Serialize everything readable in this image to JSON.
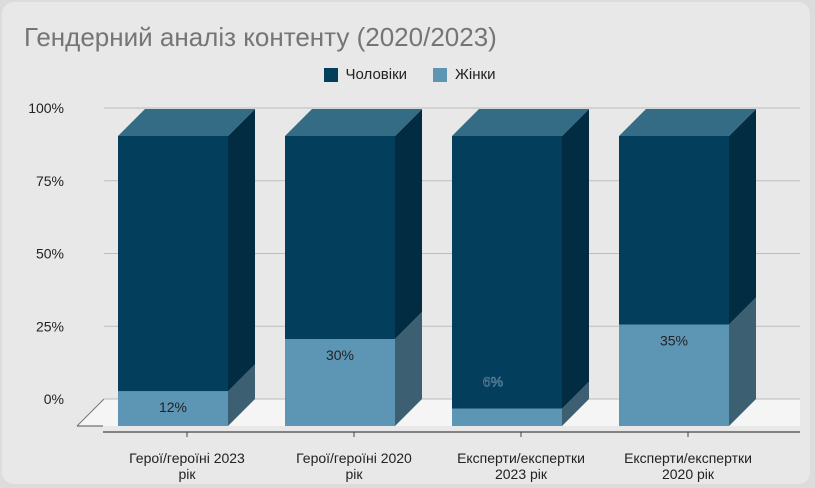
{
  "chart_data": {
    "type": "bar",
    "stacked": true,
    "three_d": true,
    "title": "Гендерний аналіз контенту (2020/2023)",
    "legend_position": "top",
    "categories": [
      [
        "Герої/героїні 2023",
        "рік"
      ],
      [
        "Герої/героїні 2020",
        "рік"
      ],
      [
        "Експерти/експертки",
        "2023 рік"
      ],
      [
        "Експерти/експертки",
        "2020 рік"
      ]
    ],
    "series": [
      {
        "name": "Жінки",
        "color": "#5d96b5",
        "side": "#3d5f72",
        "top": "#4d7e9a",
        "values": [
          12,
          30,
          6,
          35
        ]
      },
      {
        "name": "Чоловіки",
        "color": "#033f5d",
        "side": "#022c41",
        "top": "#336c84",
        "values": [
          88,
          70,
          94,
          65
        ]
      }
    ],
    "data_labels": [
      "12%",
      "30%",
      "6%",
      "35%"
    ],
    "y_ticks": [
      "100%",
      "75%",
      "50%",
      "25%",
      "0%"
    ],
    "ylim": [
      0,
      100
    ],
    "grid": true
  }
}
